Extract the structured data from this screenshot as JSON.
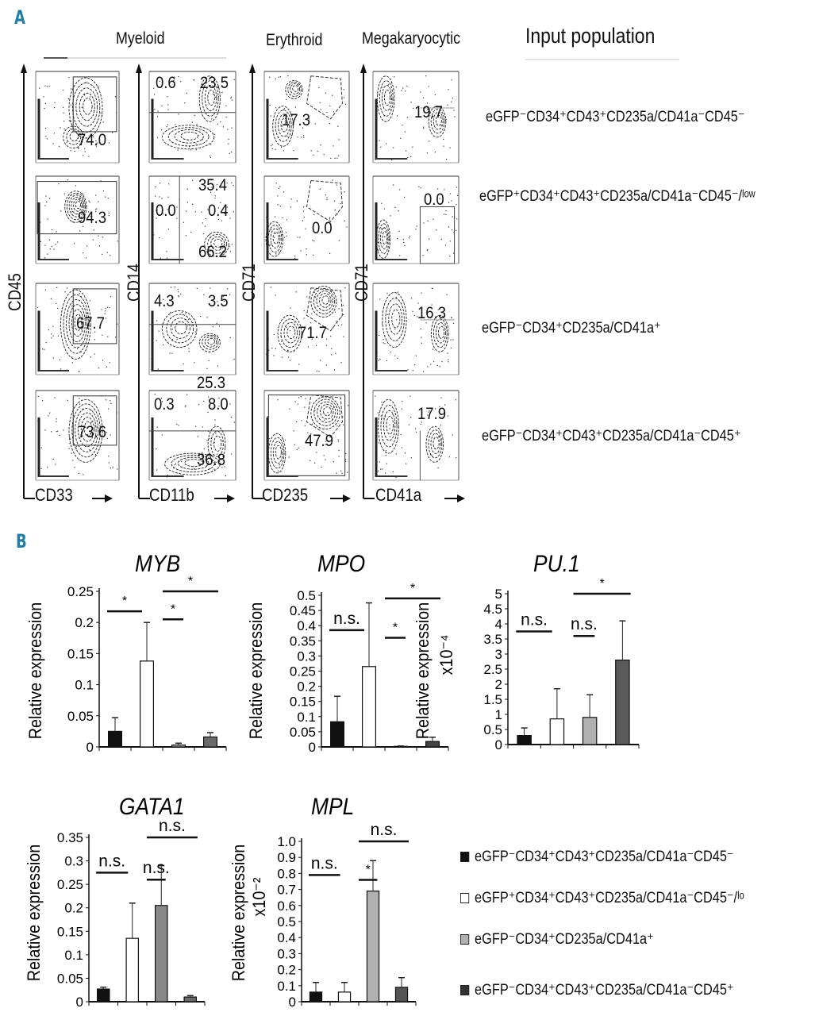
{
  "panel_a": {
    "label": "A",
    "lineage_headers": [
      "Myeloid",
      "Erythroid",
      "Megakaryocytic"
    ],
    "input_header": "Input population",
    "x_axes": [
      "CD33",
      "CD11b",
      "CD235",
      "CD41a"
    ],
    "y_axes": [
      "CD45",
      "CD14",
      "CD71",
      "CD71"
    ],
    "rows": [
      {
        "input": "eGFP⁻CD34⁺CD43⁺CD235a/CD41a⁻CD45⁻",
        "cd33_cd45": "74.0",
        "cd11b_cd14": [
          "0.6",
          "23.5",
          "35.4"
        ],
        "cd235_cd71": "17.3",
        "cd41a_cd71": "19.7"
      },
      {
        "input": "eGFP⁺CD34⁺CD43⁺CD235a/CD41a⁻CD45⁻/ˡᵒʷ",
        "cd33_cd45": "94.3",
        "cd11b_cd14": [
          "0.0",
          "0.4",
          "66.2"
        ],
        "cd235_cd71": "0.0",
        "cd41a_cd71": "0.0"
      },
      {
        "input": "eGFP⁻CD34⁺CD235a/CD41a⁺",
        "cd33_cd45": "67.7",
        "cd11b_cd14": [
          "4.3",
          "3.5",
          "25.3"
        ],
        "cd235_cd71": "71.7",
        "cd41a_cd71": "16.3"
      },
      {
        "input": "eGFP⁻CD34⁺CD43⁺CD235a/CD41a⁻CD45⁺",
        "cd33_cd45": "73.6",
        "cd11b_cd14": [
          "0.3",
          "8.0",
          "36.8"
        ],
        "cd235_cd71": "47.9",
        "cd41a_cd71": "17.9"
      }
    ]
  },
  "panel_b": {
    "label": "B",
    "legend": [
      {
        "label": "eGFP⁻CD34⁺CD43⁺CD235a/CD41a⁻CD45⁻",
        "color": "#111111"
      },
      {
        "label": "eGFP⁺CD34⁺CD43⁺CD235a/CD41a⁻CD45⁻/ˡᵒ",
        "color": "#ffffff"
      },
      {
        "label": "eGFP⁻CD34⁺CD235a/CD41a⁺",
        "color": "#b0b0b0"
      },
      {
        "label": "eGFP⁻CD34⁺CD43⁺CD235a/CD41a⁻CD45⁺",
        "color": "#333333"
      }
    ]
  },
  "chart_data": [
    {
      "type": "bar",
      "title": "MYB",
      "ylabel": "Relative expression",
      "yunit": "",
      "ylim": [
        0,
        0.25
      ],
      "ytick_step": 0.05,
      "values": [
        0.025,
        0.138,
        0.003,
        0.016
      ],
      "error_upper": [
        0.047,
        0.2,
        0.006,
        0.023
      ],
      "colors": [
        "#111111",
        "#ffffff",
        "#b0b0b0",
        "#6a6a6a"
      ],
      "significance": [
        {
          "groups": [
            0,
            1
          ],
          "label": "*",
          "y": 0.218
        },
        {
          "groups": [
            1,
            2
          ],
          "label": "*",
          "y": 0.205
        },
        {
          "groups": [
            2,
            3
          ],
          "label": "*",
          "y": 0.25
        }
      ]
    },
    {
      "type": "bar",
      "title": "MPO",
      "ylabel": "Relative expression",
      "yunit": "",
      "ylim": [
        0,
        0.5
      ],
      "ytick_step": 0.05,
      "values": [
        0.083,
        0.265,
        0.002,
        0.018
      ],
      "error_upper": [
        0.167,
        0.475,
        0.003,
        0.032
      ],
      "colors": [
        "#111111",
        "#ffffff",
        "#b0b0b0",
        "#444444"
      ],
      "significance": [
        {
          "groups": [
            0,
            1
          ],
          "label": "n.s.",
          "y": 0.385
        },
        {
          "groups": [
            1,
            2
          ],
          "label": "*",
          "y": 0.36
        },
        {
          "groups": [
            2,
            3
          ],
          "label": "*",
          "y": 0.49
        }
      ]
    },
    {
      "type": "bar",
      "title": "PU.1",
      "ylabel": "Relative expression",
      "yunit": "x10⁻⁴",
      "ylim": [
        0,
        5
      ],
      "ytick_step": 0.5,
      "values": [
        0.3,
        0.85,
        0.9,
        2.8
      ],
      "error_upper": [
        0.55,
        1.85,
        1.65,
        4.1
      ],
      "colors": [
        "#111111",
        "#ffffff",
        "#b0b0b0",
        "#5a5a5a"
      ],
      "significance": [
        {
          "groups": [
            0,
            1
          ],
          "label": "n.s.",
          "y": 3.75
        },
        {
          "groups": [
            1,
            2
          ],
          "label": "n.s.",
          "y": 3.6
        },
        {
          "groups": [
            2,
            3
          ],
          "label": "*",
          "y": 5.0
        }
      ]
    },
    {
      "type": "bar",
      "title": "GATA1",
      "ylabel": "Relative expression",
      "yunit": "",
      "ylim": [
        0,
        0.35
      ],
      "ytick_step": 0.05,
      "values": [
        0.027,
        0.135,
        0.205,
        0.01
      ],
      "error_upper": [
        0.031,
        0.21,
        0.29,
        0.013
      ],
      "colors": [
        "#111111",
        "#ffffff",
        "#888888",
        "#6a6a6a"
      ],
      "significance": [
        {
          "groups": [
            0,
            1
          ],
          "label": "n.s.",
          "y": 0.275
        },
        {
          "groups": [
            1,
            2
          ],
          "label": "n.s.",
          "y": 0.26
        },
        {
          "groups": [
            2,
            3
          ],
          "label": "n.s.",
          "y": 0.35
        }
      ]
    },
    {
      "type": "bar",
      "title": "MPL",
      "ylabel": "Relative expression",
      "yunit": "x10⁻²",
      "ylim": [
        0,
        1.0
      ],
      "ytick_step": 0.1,
      "values": [
        0.06,
        0.06,
        0.69,
        0.09
      ],
      "error_upper": [
        0.12,
        0.12,
        0.88,
        0.15
      ],
      "colors": [
        "#111111",
        "#ffffff",
        "#b0b0b0",
        "#555555"
      ],
      "significance": [
        {
          "groups": [
            0,
            1
          ],
          "label": "n.s.",
          "y": 0.79
        },
        {
          "groups": [
            1,
            2
          ],
          "label": "*",
          "y": 0.76
        },
        {
          "groups": [
            2,
            3
          ],
          "label": "n.s.",
          "y": 1.0
        }
      ]
    }
  ]
}
